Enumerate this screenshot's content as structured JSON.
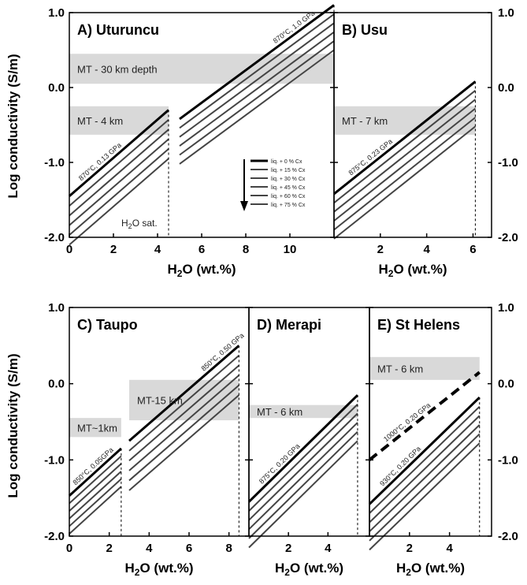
{
  "y_axis_label": "Log conductivity (S/m)",
  "x_axis_label_main": "H",
  "x_axis_label_sub": "2",
  "x_axis_label_end": "O (wt.%)",
  "legend": {
    "entries": [
      "liq. + 0 % Cx",
      "liq. + 15 % Cx",
      "liq. + 30 % Cx",
      "liq. + 45 % Cx",
      "liq. + 60 % Cx",
      "liq. + 75 % Cx"
    ],
    "arrow": "down"
  },
  "colors": {
    "melt_line": "#000000",
    "crystal_lines": "#444444",
    "mt_band": "#d9d9d9",
    "dashed_line": "#000000"
  },
  "chart_data": [
    {
      "type": "line",
      "panel": "A",
      "title": "A) Uturuncu",
      "xlabel": "H2O (wt.%)",
      "ylabel": "Log conductivity (S/m)",
      "xlim": [
        0,
        12
      ],
      "ylim": [
        -2.0,
        1.0
      ],
      "xticks": [
        "0",
        "2",
        "4",
        "6",
        "8",
        "10"
      ],
      "yticks": [
        "-2.0",
        "-1.0",
        "0.0",
        "1.0"
      ],
      "grid": false,
      "mt_bands": [
        {
          "label": "MT - 30 km depth",
          "x": [
            0,
            12
          ],
          "y": [
            0.05,
            0.45
          ]
        },
        {
          "label": "MT - 4 km",
          "x": [
            0,
            4.5
          ],
          "y": [
            -0.63,
            -0.25
          ]
        }
      ],
      "line_groups": [
        {
          "label": "870°C, 0.13 GPa",
          "x": [
            0,
            4.5
          ],
          "first_y": [
            -1.45,
            -0.3
          ],
          "step": -0.13,
          "count": 6
        },
        {
          "label": "870°C, 1.0 GPa",
          "x": [
            5,
            12
          ],
          "first_y": [
            -0.42,
            1.1
          ],
          "step": -0.12,
          "count": 6
        }
      ],
      "annotations": [
        {
          "text_main": "H",
          "text_sub": "2",
          "text_end": "O sat.",
          "x": 4.5
        }
      ]
    },
    {
      "type": "line",
      "panel": "B",
      "title": "B) Usu",
      "xlabel": "H2O (wt.%)",
      "ylabel": "Log conductivity (S/m)",
      "xlim": [
        0,
        6.8
      ],
      "ylim": [
        -2.0,
        1.0
      ],
      "xticks": [
        "2",
        "4",
        "6"
      ],
      "yticks": [
        "-2.0",
        "-1.0",
        "0.0",
        "1.0"
      ],
      "grid": false,
      "mt_bands": [
        {
          "label": "MT - 7 km",
          "x": [
            0,
            6.1
          ],
          "y": [
            -0.63,
            -0.25
          ]
        }
      ],
      "line_groups": [
        {
          "label": "875°C, 0.23 GPa",
          "x": [
            0,
            6.1
          ],
          "first_y": [
            -1.42,
            0.08
          ],
          "step": -0.12,
          "count": 6
        }
      ]
    },
    {
      "type": "line",
      "panel": "C",
      "title": "C) Taupo",
      "xlabel": "H2O (wt.%)",
      "ylabel": "Log conductivity (S/m)",
      "xlim": [
        0,
        9
      ],
      "ylim": [
        -2.0,
        1.0
      ],
      "xticks": [
        "0",
        "2",
        "4",
        "6",
        "8"
      ],
      "yticks": [
        "-2.0",
        "-1.0",
        "0.0",
        "1.0"
      ],
      "grid": false,
      "mt_bands": [
        {
          "label": "MT~1km",
          "x": [
            0,
            2.6
          ],
          "y": [
            -0.7,
            -0.45
          ]
        },
        {
          "label": "MT-15 km",
          "x": [
            3,
            8.5
          ],
          "y": [
            -0.48,
            0.05
          ]
        }
      ],
      "line_groups": [
        {
          "label": "850°C, 0.05GPa",
          "x": [
            0,
            2.6
          ],
          "first_y": [
            -1.47,
            -0.85
          ],
          "step": -0.1,
          "count": 6
        },
        {
          "label": "850°C, 0.50 GPa",
          "x": [
            3,
            8.5
          ],
          "first_y": [
            -0.75,
            0.5
          ],
          "step": -0.13,
          "count": 6
        }
      ]
    },
    {
      "type": "line",
      "panel": "D",
      "title": "D) Merapi",
      "xlabel": "H2O (wt.%)",
      "ylabel": "Log conductivity (S/m)",
      "xlim": [
        0,
        6.1
      ],
      "ylim": [
        -2.0,
        1.0
      ],
      "xticks": [
        "2",
        "4"
      ],
      "yticks": [
        "-2.0",
        "-1.0",
        "0.0",
        "1.0"
      ],
      "grid": false,
      "mt_bands": [
        {
          "label": "MT - 6 km",
          "x": [
            0,
            5.5
          ],
          "y": [
            -0.45,
            -0.28
          ]
        }
      ],
      "line_groups": [
        {
          "label": "875°C, 0.20 GPa",
          "x": [
            0,
            5.5
          ],
          "first_y": [
            -1.55,
            -0.15
          ],
          "step": -0.12,
          "count": 6
        }
      ]
    },
    {
      "type": "line",
      "panel": "E",
      "title": "E) St Helens",
      "xlabel": "H2O (wt.%)",
      "ylabel": "Log conductivity (S/m)",
      "xlim": [
        0,
        6.1
      ],
      "ylim": [
        -2.0,
        1.0
      ],
      "xticks": [
        "2",
        "4"
      ],
      "yticks": [
        "-2.0",
        "-1.0",
        "0.0",
        "1.0"
      ],
      "grid": false,
      "mt_bands": [
        {
          "label": "MT - 6 km",
          "x": [
            0,
            5.5
          ],
          "y": [
            0.05,
            0.35
          ]
        }
      ],
      "line_groups": [
        {
          "label": "1000°C, 0.20 GPa",
          "x": [
            0,
            5.5
          ],
          "first_y": [
            -1.0,
            0.15
          ],
          "step": 0,
          "count": 1,
          "dashed": true
        },
        {
          "label": "930°C, 0.20 GPa",
          "x": [
            0,
            5.5
          ],
          "first_y": [
            -1.58,
            -0.18
          ],
          "step": -0.12,
          "count": 6
        }
      ]
    }
  ]
}
